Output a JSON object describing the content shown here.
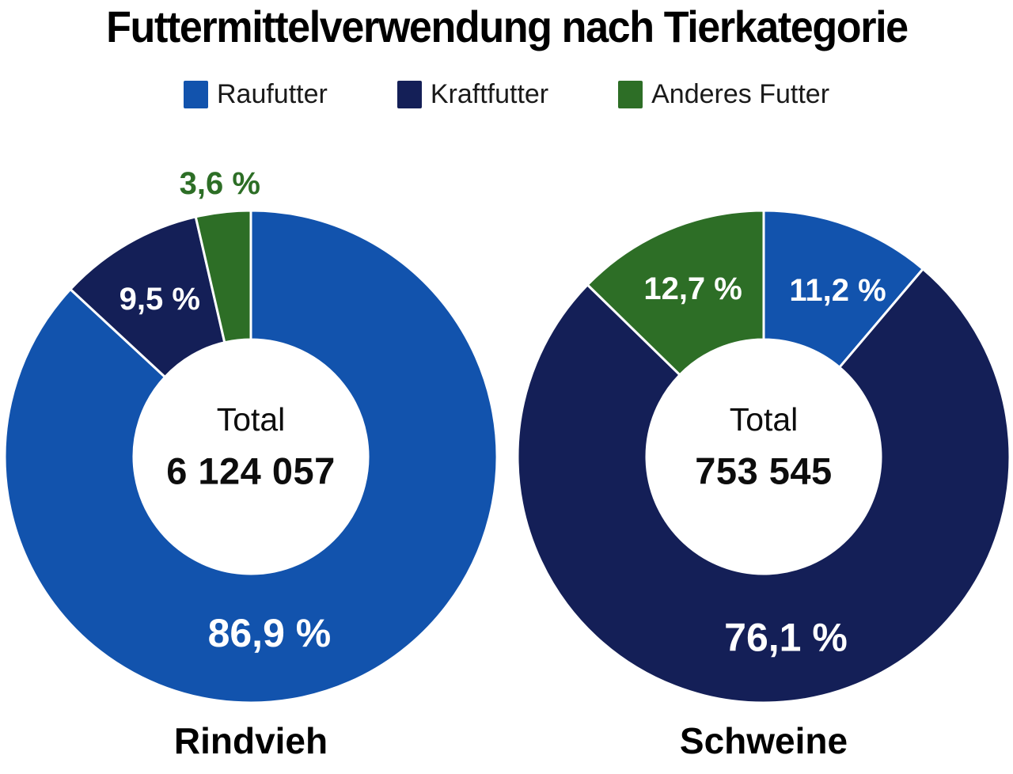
{
  "title": "Futtermittelverwendung nach Tierkategorie",
  "colors": {
    "raufutter": "#1253ad",
    "kraftfutter": "#141f57",
    "anderes_futter": "#2d6e26",
    "label_on_slice": "#ffffff",
    "text": "#000000"
  },
  "legend": {
    "items": [
      {
        "label": "Raufutter",
        "color": "#1253ad"
      },
      {
        "label": "Kraftfutter",
        "color": "#141f57"
      },
      {
        "label": "Anderes Futter",
        "color": "#2d6e26"
      }
    ]
  },
  "chart_data": [
    {
      "type": "pie",
      "variant": "donut",
      "category": "Rindvieh",
      "center_label": "Total",
      "total": "6 124 057",
      "start_angle_deg": 0,
      "direction": "clockwise",
      "segments": [
        {
          "name": "Raufutter",
          "value": 86.9,
          "display": "86,9 %",
          "color": "#1253ad",
          "label_style": "large",
          "label_angle_deg": 174,
          "label_radius": 224
        },
        {
          "name": "Kraftfutter",
          "value": 9.5,
          "display": "9,5 %",
          "color": "#141f57",
          "label_style": "small"
        },
        {
          "name": "Anderes Futter",
          "value": 3.6,
          "display": "3,6 %",
          "color": "#2d6e26",
          "label_style": "small",
          "label_outside": true,
          "label_radius": 347
        }
      ]
    },
    {
      "type": "pie",
      "variant": "donut",
      "category": "Schweine",
      "center_label": "Total",
      "total": "753 545",
      "start_angle_deg": 0,
      "direction": "clockwise",
      "segments": [
        {
          "name": "Raufutter",
          "value": 11.2,
          "display": "11,2 %",
          "color": "#1253ad",
          "label_style": "small",
          "label_angle_deg": 24,
          "label_radius": 230
        },
        {
          "name": "Kraftfutter",
          "value": 76.1,
          "display": "76,1 %",
          "color": "#141f57",
          "label_style": "large",
          "label_angle_deg": 173,
          "label_radius": 230
        },
        {
          "name": "Anderes Futter",
          "value": 12.7,
          "display": "12,7 %",
          "color": "#2d6e26",
          "label_style": "small"
        }
      ]
    }
  ]
}
